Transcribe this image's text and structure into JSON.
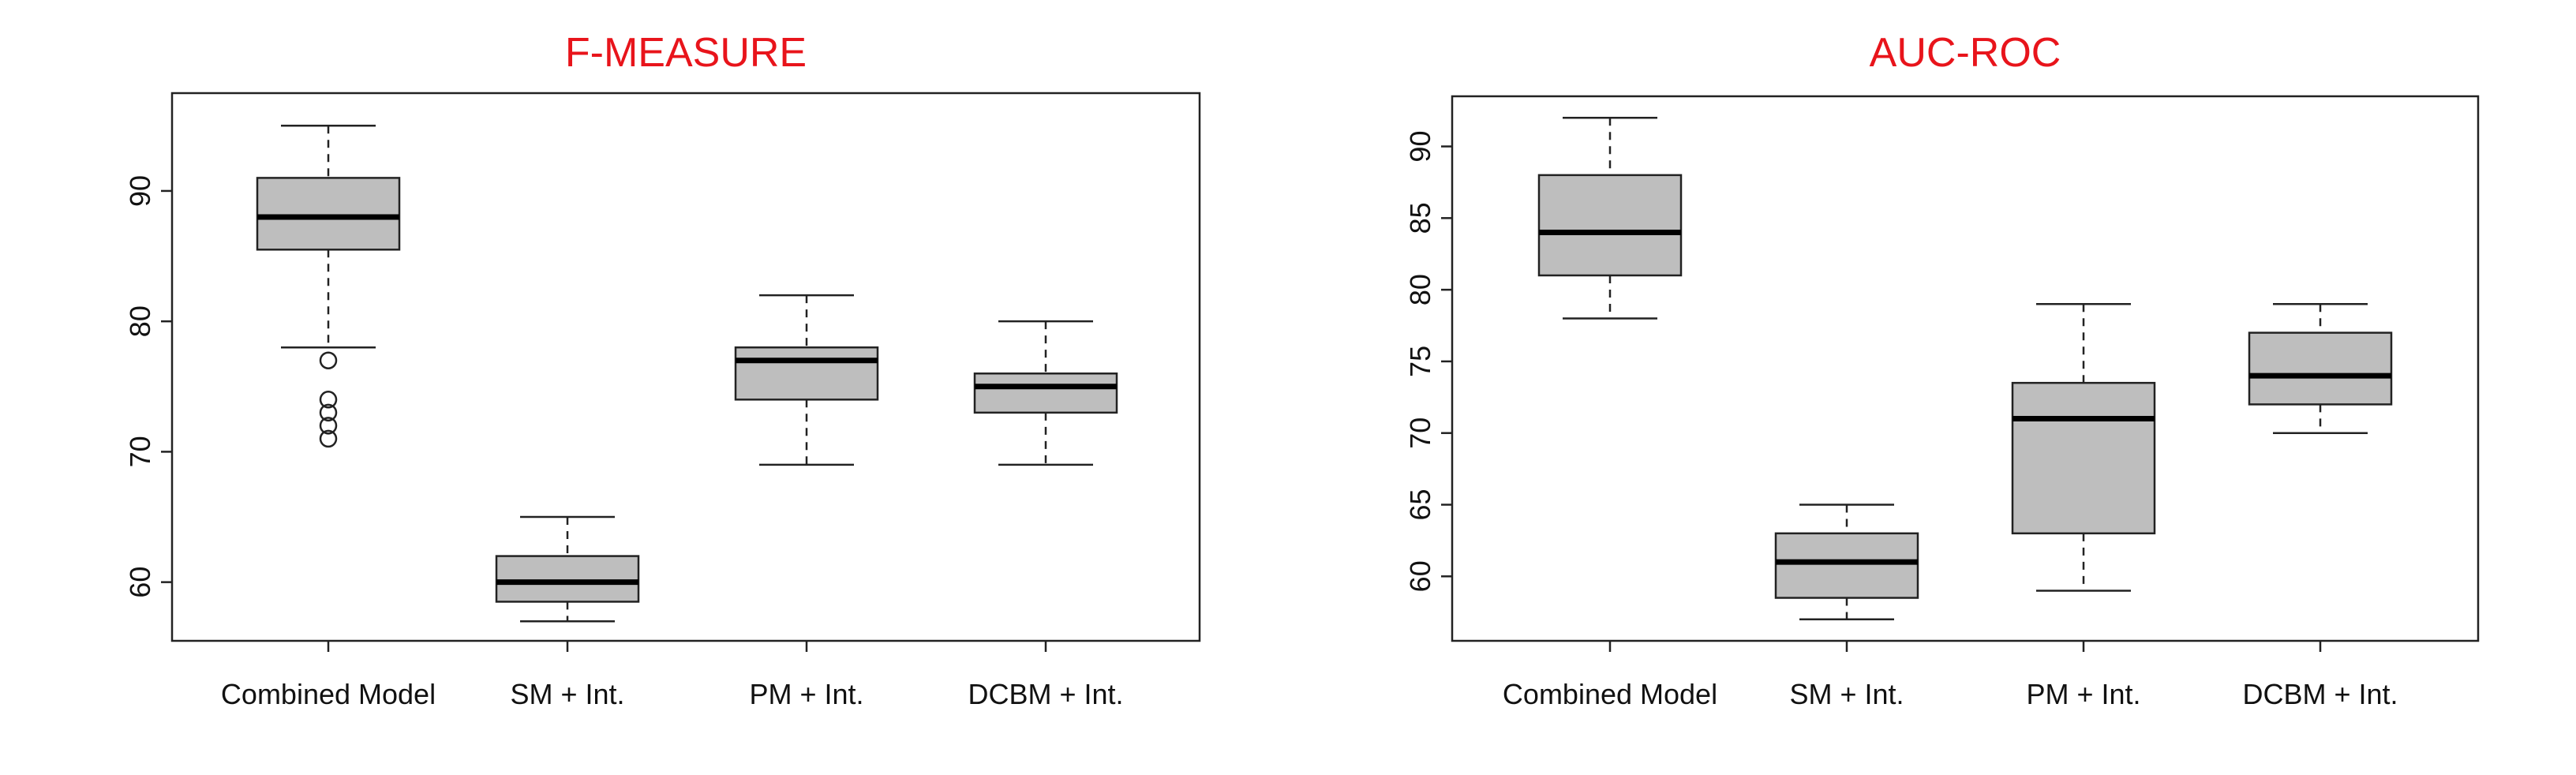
{
  "chart_data": [
    {
      "type": "boxplot",
      "title": "F-MEASURE",
      "xlabel": "",
      "ylabel": "",
      "categories": [
        "Combined Model",
        "SM + Int.",
        "PM + Int.",
        "DCBM + Int."
      ],
      "yticks": [
        60,
        70,
        80,
        90
      ],
      "ylim": [
        55.5,
        97.5
      ],
      "boxes": [
        {
          "min": 78,
          "q1": 85.5,
          "median": 88,
          "q3": 91,
          "max": 95,
          "outliers": [
            77,
            74,
            73,
            72,
            71
          ]
        },
        {
          "min": 57,
          "q1": 58.5,
          "median": 60,
          "q3": 62,
          "max": 65,
          "outliers": []
        },
        {
          "min": 69,
          "q1": 74,
          "median": 77,
          "q3": 78,
          "max": 82,
          "outliers": []
        },
        {
          "min": 69,
          "q1": 73,
          "median": 75,
          "q3": 76,
          "max": 80,
          "outliers": []
        }
      ],
      "colors": {
        "box": "#bebebe",
        "title": "#e8141b"
      }
    },
    {
      "type": "boxplot",
      "title": "AUC-ROC",
      "xlabel": "",
      "ylabel": "",
      "categories": [
        "Combined Model",
        "SM + Int.",
        "PM + Int.",
        "DCBM + Int."
      ],
      "yticks": [
        60,
        65,
        70,
        75,
        80,
        85,
        90
      ],
      "ylim": [
        55.5,
        93.5
      ],
      "boxes": [
        {
          "min": 78,
          "q1": 81,
          "median": 84,
          "q3": 88,
          "max": 92,
          "outliers": []
        },
        {
          "min": 57,
          "q1": 58.5,
          "median": 61,
          "q3": 63,
          "max": 65,
          "outliers": []
        },
        {
          "min": 59,
          "q1": 63,
          "median": 71,
          "q3": 73.5,
          "max": 79,
          "outliers": []
        },
        {
          "min": 70,
          "q1": 72,
          "median": 74,
          "q3": 77,
          "max": 79,
          "outliers": []
        }
      ],
      "colors": {
        "box": "#bebebe",
        "title": "#e8141b"
      }
    }
  ]
}
